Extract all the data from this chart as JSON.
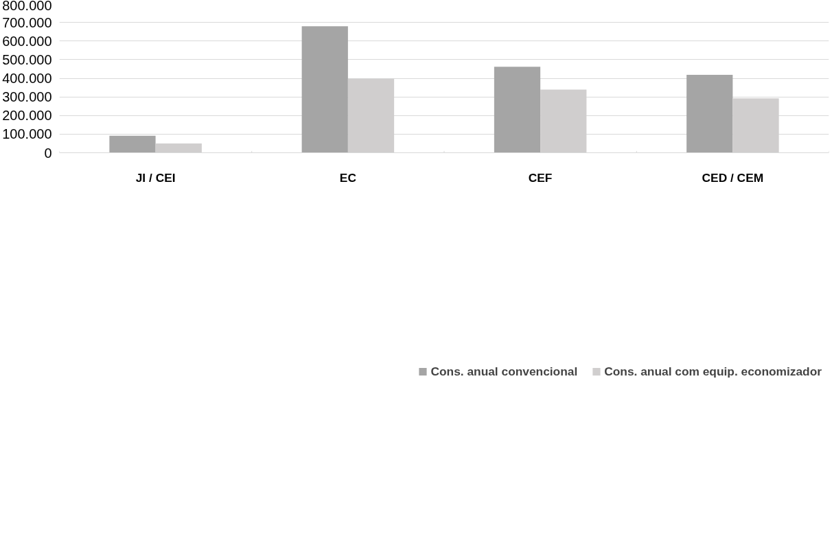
{
  "chart_data": {
    "type": "bar",
    "categories": [
      "JI / CEI",
      "EC",
      "CEF",
      "CED / CEM"
    ],
    "series": [
      {
        "name": "Cons. anual convencional",
        "color": "#a5a5a5",
        "values": [
          91000,
          679000,
          462000,
          418000
        ]
      },
      {
        "name": "Cons. anual com equip. economizador",
        "color": "#d0cece",
        "values": [
          50000,
          397000,
          339000,
          292000
        ]
      }
    ],
    "ylim": [
      0,
      800000
    ],
    "yticks": [
      0,
      {
        "value": 100000,
        "label": "100.000"
      },
      {
        "value": 200000,
        "label": "200.000"
      },
      {
        "value": 300000,
        "label": "300.000"
      },
      {
        "value": 400000,
        "label": "400.000"
      },
      {
        "value": 500000,
        "label": "500.000"
      },
      {
        "value": 600000,
        "label": "600.000"
      },
      {
        "value": 700000,
        "label": "700.000"
      },
      {
        "value": 800000,
        "label": "800.000"
      }
    ],
    "grid": "y",
    "legend": "bottom"
  }
}
